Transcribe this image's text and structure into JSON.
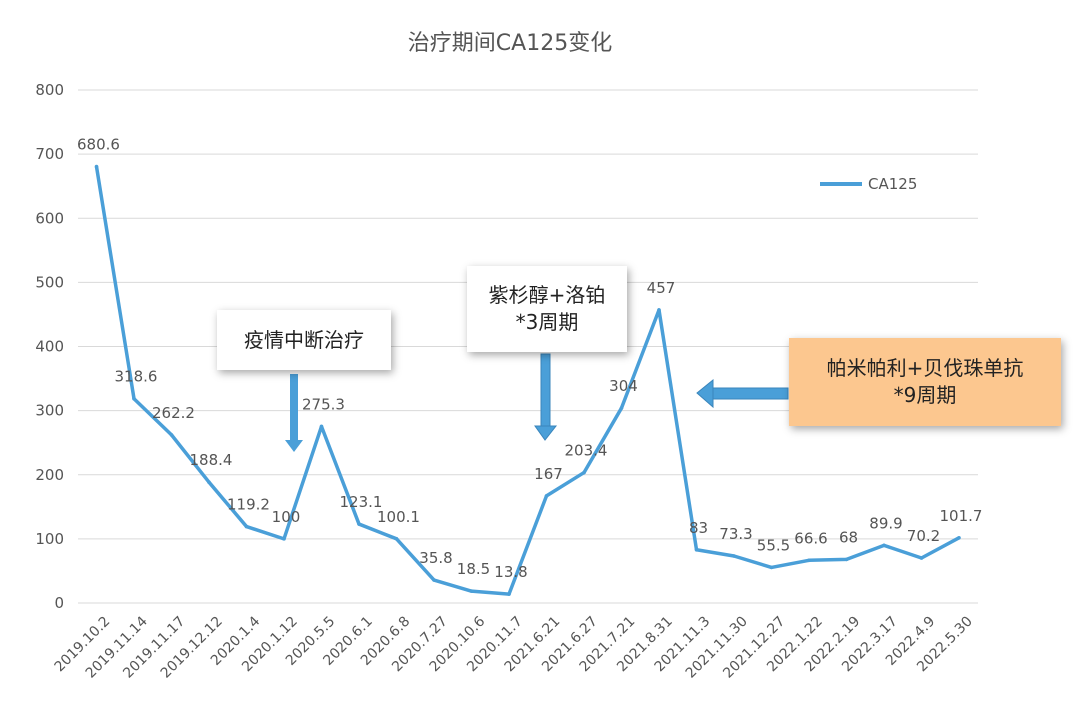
{
  "chart_data": {
    "type": "line",
    "title": "治疗期间CA125变化",
    "categories": [
      "2019.10.2",
      "2019.11.14",
      "2019.11.17",
      "2019.12.12",
      "2020.1.4",
      "2020.1.12",
      "2020.5.5",
      "2020.6.1",
      "2020.6.8",
      "2020.7.27",
      "2020.10.6",
      "2020.11.7",
      "2021.6.21",
      "2021.6.27",
      "2021.7.21",
      "2021.8.31",
      "2021.11.3",
      "2021.11.30",
      "2021.12.27",
      "2022.1.22",
      "2022.2.19",
      "2022.3.17",
      "2022.4.9",
      "2022.5.30"
    ],
    "series": [
      {
        "name": "CA125",
        "values": [
          680.6,
          318.6,
          262.2,
          188.4,
          119.2,
          100,
          275.3,
          123.1,
          100.1,
          35.8,
          18.5,
          13.8,
          167,
          203.4,
          304,
          457,
          83,
          73.3,
          55.5,
          66.6,
          68,
          89.9,
          70.2,
          101.7
        ],
        "labels": [
          "680.6",
          "318.6",
          "262.2",
          "188.4",
          "119.2",
          "100",
          "275.3",
          "123.1",
          "100.1",
          "35.8",
          "18.5",
          "13.8",
          "167",
          "203.4",
          "304",
          "457",
          "83",
          "73.3",
          "55.5",
          "66.6",
          "68",
          "89.9",
          "70.2",
          "101.7"
        ]
      }
    ],
    "ylim": [
      0,
      800
    ],
    "yticks": [
      "0",
      "100",
      "200",
      "300",
      "400",
      "500",
      "600",
      "700",
      "800"
    ],
    "grid": true,
    "legend_position": "top-right",
    "colors": {
      "line": "#4a9fd8",
      "grid": "#d9d9d9",
      "arrow": "#4a9fd8",
      "annotation_highlight": "#fcc78f"
    }
  },
  "annotations": {
    "pause": "疫情中断治疗",
    "chemo_line1": "紫杉醇+洛铂",
    "chemo_line2": "*3周期",
    "maint_line1": "帕米帕利+贝伐珠单抗",
    "maint_line2": "*9周期"
  }
}
